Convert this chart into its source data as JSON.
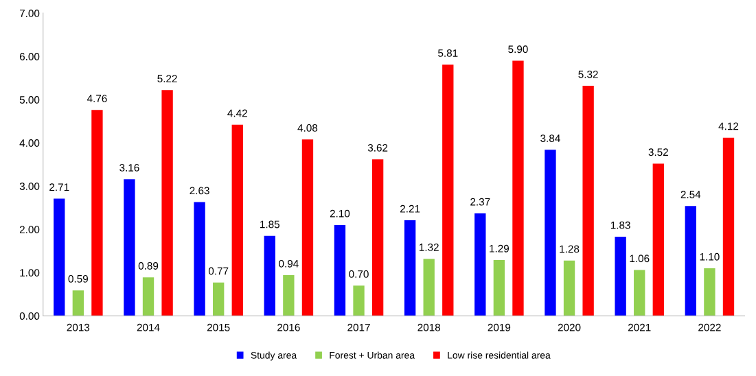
{
  "chart_data": {
    "type": "bar",
    "categories": [
      "2013",
      "2014",
      "2015",
      "2016",
      "2017",
      "2018",
      "2019",
      "2020",
      "2021",
      "2022"
    ],
    "series": [
      {
        "name": "Study area",
        "color": "#0000ff",
        "values": [
          2.71,
          3.16,
          2.63,
          1.85,
          2.1,
          2.21,
          2.37,
          3.84,
          1.83,
          2.54
        ],
        "value_labels": [
          "2.71",
          "3.16",
          "2.63",
          "1.85",
          "2.10",
          "2.21",
          "2.37",
          "3.84",
          "1.83",
          "2.54"
        ]
      },
      {
        "name": "Forest + Urban area",
        "color": "#92d050",
        "values": [
          0.59,
          0.89,
          0.77,
          0.94,
          0.7,
          1.32,
          1.29,
          1.28,
          1.06,
          1.1
        ],
        "value_labels": [
          "0.59",
          "0.89",
          "0.77",
          "0.94",
          "0.70",
          "1.32",
          "1.29",
          "1.28",
          "1.06",
          "1.10"
        ]
      },
      {
        "name": "Low rise residential area",
        "color": "#ff0000",
        "values": [
          4.76,
          5.22,
          4.42,
          4.08,
          3.62,
          5.81,
          5.9,
          5.32,
          3.52,
          4.12
        ],
        "value_labels": [
          "4.76",
          "5.22",
          "4.42",
          "4.08",
          "3.62",
          "5.81",
          "5.90",
          "5.32",
          "3.52",
          "4.12"
        ]
      }
    ],
    "ylim": [
      0,
      7
    ],
    "yticks": [
      {
        "value": 0,
        "label": "0.00"
      },
      {
        "value": 1,
        "label": "1.00"
      },
      {
        "value": 2,
        "label": "2.00"
      },
      {
        "value": 3,
        "label": "3.00"
      },
      {
        "value": 4,
        "label": "4.00"
      },
      {
        "value": 5,
        "label": "5.00"
      },
      {
        "value": 6,
        "label": "6.00"
      },
      {
        "value": 7,
        "label": "7.00"
      }
    ],
    "grid": false,
    "legend": "bottom"
  }
}
